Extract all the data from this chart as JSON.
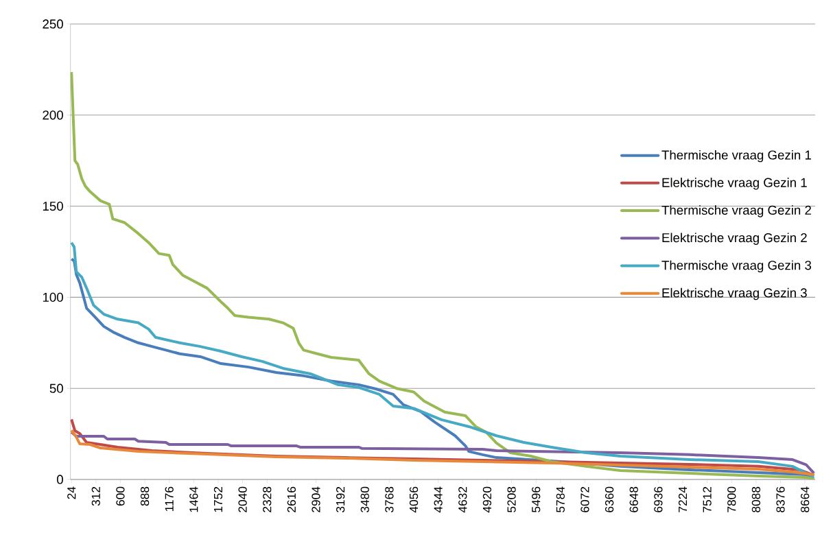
{
  "chart_data": {
    "type": "line",
    "xlim": [
      12,
      8784
    ],
    "ylim": [
      0,
      250
    ],
    "xticks": [
      24,
      312,
      600,
      888,
      1176,
      1464,
      1752,
      2040,
      2328,
      2616,
      2904,
      3192,
      3480,
      3768,
      4056,
      4344,
      4632,
      4920,
      5208,
      5496,
      5784,
      6072,
      6360,
      6648,
      6936,
      7224,
      7512,
      7800,
      8088,
      8376,
      8664
    ],
    "yticks": [
      0,
      50,
      100,
      150,
      200,
      250
    ],
    "grid": "y",
    "legend": "right",
    "marker": "none",
    "line_style": "solid",
    "series": [
      {
        "name": "Thermische vraag Gezin 1",
        "color": "#4a7ebb",
        "x": [
          24,
          56,
          81,
          121,
          162,
          202,
          284,
          405,
          527,
          649,
          811,
          973,
          1135,
          1298,
          1541,
          1785,
          2109,
          2434,
          2758,
          3083,
          3407,
          3610,
          3813,
          3934,
          4137,
          4300,
          4543,
          4665,
          4705,
          4867,
          5030,
          5679,
          6490,
          7301,
          8113,
          8680,
          8770
        ],
        "values": [
          121,
          120,
          112.6,
          108,
          101,
          94,
          90,
          84,
          80.6,
          78,
          75,
          73,
          71,
          69,
          67.4,
          63.6,
          61.7,
          58.7,
          56.9,
          54,
          52,
          49.7,
          46.7,
          41,
          37.3,
          31.6,
          24,
          18.4,
          15.4,
          13.6,
          12,
          10.2,
          7.2,
          5.3,
          3.8,
          2.6,
          0.4
        ]
      },
      {
        "name": "Elektrische vraag Gezin 1",
        "color": "#be4b48",
        "x": [
          24,
          65,
          121,
          202,
          365,
          568,
          973,
          1622,
          2434,
          3245,
          4056,
          4867,
          5679,
          6490,
          7301,
          8113,
          8599,
          8770
        ],
        "values": [
          33,
          26.7,
          25.2,
          20.3,
          19.2,
          17.7,
          15.8,
          14.3,
          12.8,
          12,
          11.3,
          10.5,
          9.8,
          9,
          8.3,
          7.2,
          5.3,
          2.3
        ]
      },
      {
        "name": "Thermische vraag Gezin 2",
        "color": "#98b954",
        "x": [
          24,
          48,
          65,
          97,
          146,
          187,
          243,
          365,
          470,
          511,
          649,
          811,
          933,
          1054,
          1176,
          1217,
          1338,
          1460,
          1622,
          1785,
          1866,
          1947,
          2109,
          2352,
          2515,
          2636,
          2701,
          2758,
          2920,
          3083,
          3407,
          3529,
          3651,
          3853,
          4056,
          4178,
          4421,
          4665,
          4786,
          4908,
          5030,
          5192,
          5435,
          5679,
          6084,
          6490,
          6896,
          7301,
          7707,
          8113,
          8680,
          8770
        ],
        "values": [
          223.6,
          195,
          175,
          173,
          165,
          161,
          158,
          153,
          151,
          143,
          141,
          135,
          130,
          124,
          123,
          118,
          112,
          109,
          105,
          97.5,
          94,
          90,
          89,
          88,
          86,
          83,
          75,
          71,
          69,
          67,
          65.5,
          58,
          54,
          50,
          48,
          43,
          37,
          35,
          29,
          26,
          20,
          14.7,
          12.8,
          9.8,
          7.2,
          4.9,
          4.1,
          3.4,
          2.6,
          1.9,
          1.1,
          0.4
        ]
      },
      {
        "name": "Elektrische vraag Gezin 2",
        "color": "#7d60a0",
        "x": [
          24,
          81,
          405,
          446,
          770,
          811,
          1135,
          1176,
          1866,
          1906,
          2677,
          2718,
          3407,
          3448,
          4867,
          5030,
          6490,
          7301,
          8113,
          8518,
          8680,
          8770
        ],
        "values": [
          26,
          23.7,
          23.7,
          22.2,
          22.2,
          21,
          20.3,
          19.2,
          19.2,
          18.4,
          18.4,
          17.7,
          17.7,
          17,
          16.6,
          15.8,
          14.7,
          13.6,
          12,
          10.9,
          8,
          3.4
        ]
      },
      {
        "name": "Thermische vraag Gezin 3",
        "color": "#46aac5",
        "x": [
          24,
          56,
          81,
          146,
          202,
          284,
          405,
          568,
          811,
          933,
          1014,
          1298,
          1541,
          1785,
          2028,
          2271,
          2515,
          2839,
          3164,
          3407,
          3651,
          3813,
          4056,
          4381,
          4705,
          5030,
          5354,
          5679,
          6084,
          6490,
          7301,
          8113,
          8518,
          8680,
          8770
        ],
        "values": [
          130,
          127.6,
          114,
          111,
          105,
          95.6,
          90.7,
          88,
          86,
          82.5,
          78,
          75,
          73,
          70.4,
          67.4,
          64.8,
          61,
          58,
          52,
          50.5,
          46.7,
          40.3,
          39,
          32.8,
          29,
          24,
          20.3,
          17.7,
          14.7,
          12.8,
          10.9,
          9.8,
          7.2,
          3.4,
          1.5
        ]
      },
      {
        "name": "Elektrische vraag Gezin 3",
        "color": "#e8883a",
        "x": [
          24,
          81,
          121,
          243,
          365,
          811,
          1622,
          2434,
          3245,
          4056,
          4867,
          5679,
          6490,
          7301,
          8113,
          8518,
          8770
        ],
        "values": [
          27,
          23.3,
          19.6,
          19.2,
          17.3,
          15.4,
          13.9,
          12.4,
          11.7,
          10.5,
          9.8,
          9,
          7.9,
          6.8,
          5.6,
          4.1,
          2.6
        ]
      }
    ]
  }
}
